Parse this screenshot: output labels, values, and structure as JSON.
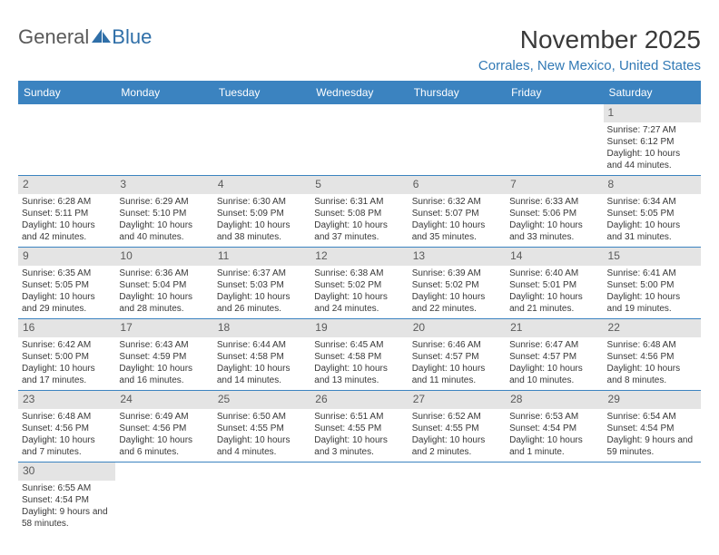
{
  "logo": {
    "general": "General",
    "blue": "Blue"
  },
  "title": "November 2025",
  "location": "Corrales, New Mexico, United States",
  "header_bg": "#3b83c0",
  "dayHeaders": [
    "Sunday",
    "Monday",
    "Tuesday",
    "Wednesday",
    "Thursday",
    "Friday",
    "Saturday"
  ],
  "colors": {
    "header_bg": "#3b83c0",
    "header_text": "#ffffff",
    "daynum_bg": "#e4e4e4",
    "text": "#383838",
    "location_text": "#3179b5",
    "title_text": "#3a3a3a"
  },
  "typography": {
    "title_fontsize": 28,
    "location_fontsize": 15,
    "dayheader_fontsize": 12,
    "daynum_fontsize": 12,
    "body_fontsize": 10
  },
  "weeks": [
    [
      {
        "n": "",
        "sr": "",
        "ss": "",
        "dl": ""
      },
      {
        "n": "",
        "sr": "",
        "ss": "",
        "dl": ""
      },
      {
        "n": "",
        "sr": "",
        "ss": "",
        "dl": ""
      },
      {
        "n": "",
        "sr": "",
        "ss": "",
        "dl": ""
      },
      {
        "n": "",
        "sr": "",
        "ss": "",
        "dl": ""
      },
      {
        "n": "",
        "sr": "",
        "ss": "",
        "dl": ""
      },
      {
        "n": "1",
        "sr": "Sunrise: 7:27 AM",
        "ss": "Sunset: 6:12 PM",
        "dl": "Daylight: 10 hours and 44 minutes."
      }
    ],
    [
      {
        "n": "2",
        "sr": "Sunrise: 6:28 AM",
        "ss": "Sunset: 5:11 PM",
        "dl": "Daylight: 10 hours and 42 minutes."
      },
      {
        "n": "3",
        "sr": "Sunrise: 6:29 AM",
        "ss": "Sunset: 5:10 PM",
        "dl": "Daylight: 10 hours and 40 minutes."
      },
      {
        "n": "4",
        "sr": "Sunrise: 6:30 AM",
        "ss": "Sunset: 5:09 PM",
        "dl": "Daylight: 10 hours and 38 minutes."
      },
      {
        "n": "5",
        "sr": "Sunrise: 6:31 AM",
        "ss": "Sunset: 5:08 PM",
        "dl": "Daylight: 10 hours and 37 minutes."
      },
      {
        "n": "6",
        "sr": "Sunrise: 6:32 AM",
        "ss": "Sunset: 5:07 PM",
        "dl": "Daylight: 10 hours and 35 minutes."
      },
      {
        "n": "7",
        "sr": "Sunrise: 6:33 AM",
        "ss": "Sunset: 5:06 PM",
        "dl": "Daylight: 10 hours and 33 minutes."
      },
      {
        "n": "8",
        "sr": "Sunrise: 6:34 AM",
        "ss": "Sunset: 5:05 PM",
        "dl": "Daylight: 10 hours and 31 minutes."
      }
    ],
    [
      {
        "n": "9",
        "sr": "Sunrise: 6:35 AM",
        "ss": "Sunset: 5:05 PM",
        "dl": "Daylight: 10 hours and 29 minutes."
      },
      {
        "n": "10",
        "sr": "Sunrise: 6:36 AM",
        "ss": "Sunset: 5:04 PM",
        "dl": "Daylight: 10 hours and 28 minutes."
      },
      {
        "n": "11",
        "sr": "Sunrise: 6:37 AM",
        "ss": "Sunset: 5:03 PM",
        "dl": "Daylight: 10 hours and 26 minutes."
      },
      {
        "n": "12",
        "sr": "Sunrise: 6:38 AM",
        "ss": "Sunset: 5:02 PM",
        "dl": "Daylight: 10 hours and 24 minutes."
      },
      {
        "n": "13",
        "sr": "Sunrise: 6:39 AM",
        "ss": "Sunset: 5:02 PM",
        "dl": "Daylight: 10 hours and 22 minutes."
      },
      {
        "n": "14",
        "sr": "Sunrise: 6:40 AM",
        "ss": "Sunset: 5:01 PM",
        "dl": "Daylight: 10 hours and 21 minutes."
      },
      {
        "n": "15",
        "sr": "Sunrise: 6:41 AM",
        "ss": "Sunset: 5:00 PM",
        "dl": "Daylight: 10 hours and 19 minutes."
      }
    ],
    [
      {
        "n": "16",
        "sr": "Sunrise: 6:42 AM",
        "ss": "Sunset: 5:00 PM",
        "dl": "Daylight: 10 hours and 17 minutes."
      },
      {
        "n": "17",
        "sr": "Sunrise: 6:43 AM",
        "ss": "Sunset: 4:59 PM",
        "dl": "Daylight: 10 hours and 16 minutes."
      },
      {
        "n": "18",
        "sr": "Sunrise: 6:44 AM",
        "ss": "Sunset: 4:58 PM",
        "dl": "Daylight: 10 hours and 14 minutes."
      },
      {
        "n": "19",
        "sr": "Sunrise: 6:45 AM",
        "ss": "Sunset: 4:58 PM",
        "dl": "Daylight: 10 hours and 13 minutes."
      },
      {
        "n": "20",
        "sr": "Sunrise: 6:46 AM",
        "ss": "Sunset: 4:57 PM",
        "dl": "Daylight: 10 hours and 11 minutes."
      },
      {
        "n": "21",
        "sr": "Sunrise: 6:47 AM",
        "ss": "Sunset: 4:57 PM",
        "dl": "Daylight: 10 hours and 10 minutes."
      },
      {
        "n": "22",
        "sr": "Sunrise: 6:48 AM",
        "ss": "Sunset: 4:56 PM",
        "dl": "Daylight: 10 hours and 8 minutes."
      }
    ],
    [
      {
        "n": "23",
        "sr": "Sunrise: 6:48 AM",
        "ss": "Sunset: 4:56 PM",
        "dl": "Daylight: 10 hours and 7 minutes."
      },
      {
        "n": "24",
        "sr": "Sunrise: 6:49 AM",
        "ss": "Sunset: 4:56 PM",
        "dl": "Daylight: 10 hours and 6 minutes."
      },
      {
        "n": "25",
        "sr": "Sunrise: 6:50 AM",
        "ss": "Sunset: 4:55 PM",
        "dl": "Daylight: 10 hours and 4 minutes."
      },
      {
        "n": "26",
        "sr": "Sunrise: 6:51 AM",
        "ss": "Sunset: 4:55 PM",
        "dl": "Daylight: 10 hours and 3 minutes."
      },
      {
        "n": "27",
        "sr": "Sunrise: 6:52 AM",
        "ss": "Sunset: 4:55 PM",
        "dl": "Daylight: 10 hours and 2 minutes."
      },
      {
        "n": "28",
        "sr": "Sunrise: 6:53 AM",
        "ss": "Sunset: 4:54 PM",
        "dl": "Daylight: 10 hours and 1 minute."
      },
      {
        "n": "29",
        "sr": "Sunrise: 6:54 AM",
        "ss": "Sunset: 4:54 PM",
        "dl": "Daylight: 9 hours and 59 minutes."
      }
    ],
    [
      {
        "n": "30",
        "sr": "Sunrise: 6:55 AM",
        "ss": "Sunset: 4:54 PM",
        "dl": "Daylight: 9 hours and 58 minutes."
      },
      {
        "n": "",
        "sr": "",
        "ss": "",
        "dl": ""
      },
      {
        "n": "",
        "sr": "",
        "ss": "",
        "dl": ""
      },
      {
        "n": "",
        "sr": "",
        "ss": "",
        "dl": ""
      },
      {
        "n": "",
        "sr": "",
        "ss": "",
        "dl": ""
      },
      {
        "n": "",
        "sr": "",
        "ss": "",
        "dl": ""
      },
      {
        "n": "",
        "sr": "",
        "ss": "",
        "dl": ""
      }
    ]
  ]
}
